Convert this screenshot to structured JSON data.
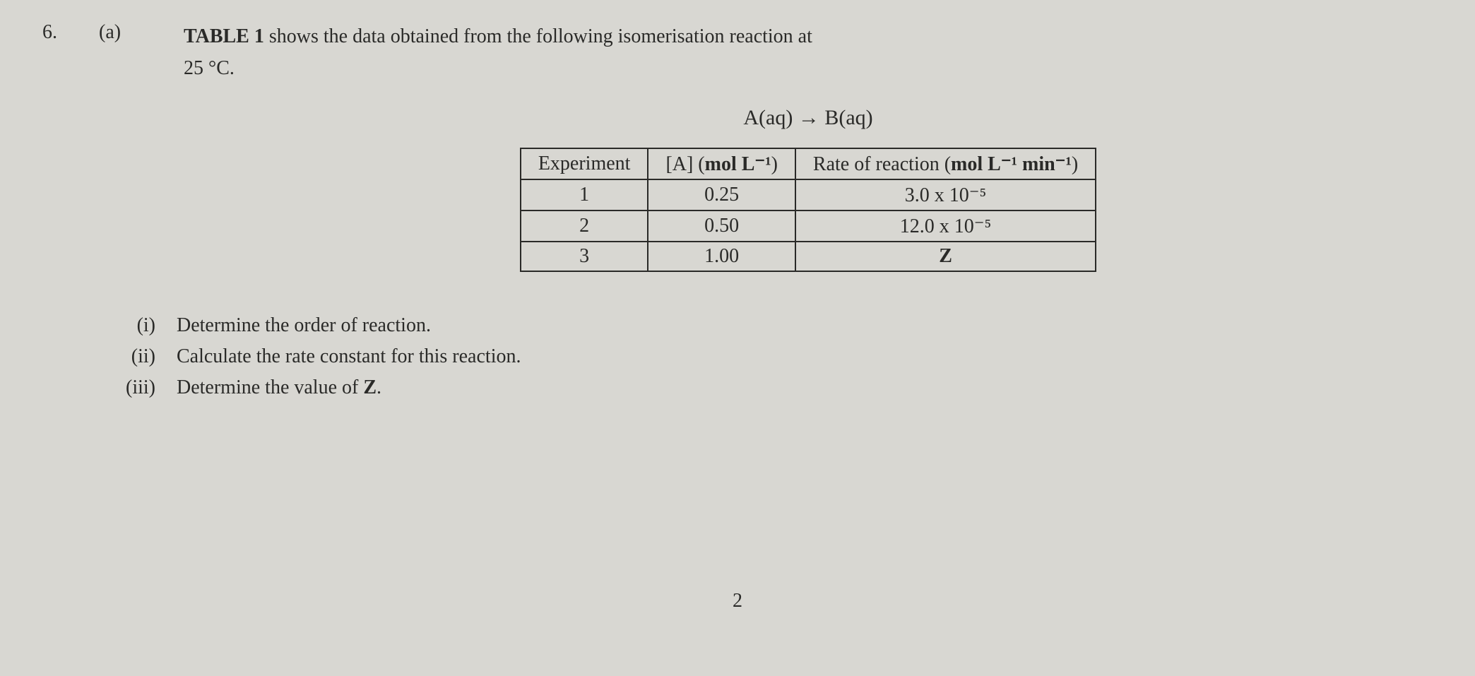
{
  "question_number": "6.",
  "part_label": "(a)",
  "intro_line1_prefix": "TABLE 1",
  "intro_line1_rest": " shows the data obtained from the following isomerisation reaction at",
  "intro_line2": "25 °C.",
  "equation": "A(aq) → B(aq)",
  "table": {
    "headers": {
      "col1": "Experiment",
      "col2_prefix": "[A] (",
      "col2_bold": "mol L⁻¹",
      "col2_suffix": ")",
      "col3_prefix": "Rate of reaction (",
      "col3_bold": "mol L⁻¹ min⁻¹",
      "col3_suffix": ")"
    },
    "rows": [
      {
        "exp": "1",
        "conc": "0.25",
        "rate": "3.0 x 10⁻⁵"
      },
      {
        "exp": "2",
        "conc": "0.50",
        "rate": "12.0 x 10⁻⁵"
      },
      {
        "exp": "3",
        "conc": "1.00",
        "rate": "Z"
      }
    ]
  },
  "subquestions": {
    "i": {
      "label": "(i)",
      "text": "Determine the order of reaction."
    },
    "ii": {
      "label": "(ii)",
      "text": "Calculate the rate constant for this reaction."
    },
    "iii": {
      "label": "(iii)",
      "text_prefix": "Determine the value of ",
      "text_bold": "Z",
      "text_suffix": "."
    }
  },
  "page_number": "2",
  "colors": {
    "background": "#d8d7d2",
    "text": "#2a2a28",
    "border": "#2a2a28"
  },
  "typography": {
    "body_fontsize": 28,
    "equation_fontsize": 30,
    "font_family": "Times New Roman"
  }
}
